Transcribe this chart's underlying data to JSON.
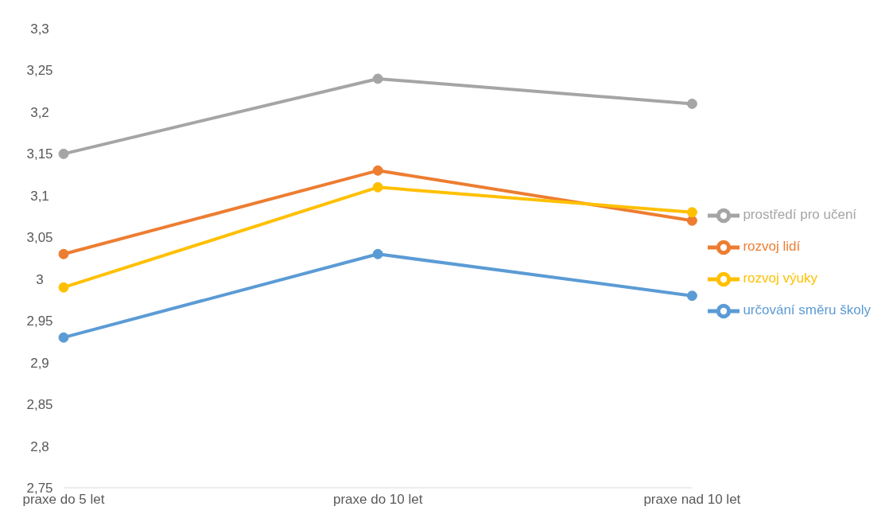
{
  "chart_data": {
    "type": "line",
    "categories": [
      "praxe do 5 let",
      "praxe do 10 let",
      "praxe nad 10 let"
    ],
    "series": [
      {
        "name": "určování směru školy",
        "color": "#5b9bd5",
        "values": [
          2.93,
          3.03,
          2.98
        ]
      },
      {
        "name": "rozvoj lidí",
        "color": "#ed7d31",
        "values": [
          3.03,
          3.13,
          3.07
        ]
      },
      {
        "name": "prostředí pro učení",
        "color": "#a5a5a5",
        "values": [
          3.15,
          3.24,
          3.21
        ]
      },
      {
        "name": "rozvoj výuky",
        "color": "#ffc000",
        "values": [
          2.99,
          3.11,
          3.08
        ]
      }
    ],
    "ylim": [
      2.75,
      3.3
    ],
    "yticks": [
      {
        "value": 2.75,
        "label": "2,75"
      },
      {
        "value": 2.8,
        "label": "2,8"
      },
      {
        "value": 2.85,
        "label": "2,85"
      },
      {
        "value": 2.9,
        "label": "2,9"
      },
      {
        "value": 2.95,
        "label": "2,95"
      },
      {
        "value": 3,
        "label": "3"
      },
      {
        "value": 3.05,
        "label": "3,05"
      },
      {
        "value": 3.1,
        "label": "3,1"
      },
      {
        "value": 3.15,
        "label": "3,15"
      },
      {
        "value": 3.2,
        "label": "3,2"
      },
      {
        "value": 3.25,
        "label": "3,25"
      },
      {
        "value": 3.3,
        "label": "3,3"
      }
    ],
    "legend": "right",
    "marker": "circle",
    "line_style": "solid"
  }
}
